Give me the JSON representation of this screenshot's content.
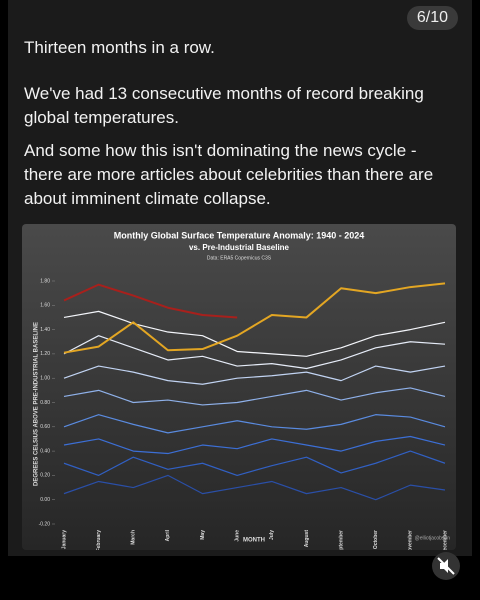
{
  "post": {
    "counter": "6/10",
    "paragraphs": [
      "Thirteen months in a row.",
      "We've had 13 consecutive months of record breaking global temperatures.",
      "And some how this isn't dominating the news cycle - there are more articles about celebrities than there are about imminent climate collapse."
    ]
  },
  "chart_data": {
    "type": "line",
    "title": "Monthly Global Surface Temperature Anomaly: 1940 - 2024",
    "subtitle": "vs. Pre-Industrial Baseline",
    "source": "Data: ERA5 Copernicus C3S",
    "credit": "@elliotjacobson",
    "x_label": "MONTH",
    "y_label": "DEGREES CELSIUS ABOVE PRE-INDUSTRIAL BASELINE",
    "categories": [
      "January",
      "February",
      "March",
      "April",
      "May",
      "June",
      "July",
      "August",
      "September",
      "October",
      "November",
      "December"
    ],
    "ylim": [
      -0.2,
      1.8
    ],
    "yticks": [
      {
        "value": -0.2,
        "label": "-0.20"
      },
      {
        "value": 0,
        "label": "0.00"
      },
      {
        "value": 0.2,
        "label": "0.20"
      },
      {
        "value": 0.4,
        "label": "0.40"
      },
      {
        "value": 0.6,
        "label": "0.60"
      },
      {
        "value": 0.8,
        "label": "0.80"
      },
      {
        "value": 1,
        "label": "1.00"
      },
      {
        "value": 1.2,
        "label": "1.20"
      },
      {
        "value": 1.4,
        "label": "1.40"
      },
      {
        "value": 1.6,
        "label": "1.60"
      },
      {
        "value": 1.8,
        "label": "1.80"
      }
    ],
    "series": [
      {
        "color": "#2a4fa8",
        "values": [
          0.05,
          0.15,
          0.1,
          0.2,
          0.05,
          0.1,
          0.15,
          0.05,
          0.1,
          0.0,
          0.12,
          0.08
        ]
      },
      {
        "color": "#3160c4",
        "values": [
          0.3,
          0.2,
          0.35,
          0.25,
          0.3,
          0.2,
          0.28,
          0.35,
          0.22,
          0.3,
          0.4,
          0.3
        ]
      },
      {
        "color": "#3c6fd6",
        "values": [
          0.45,
          0.5,
          0.4,
          0.38,
          0.45,
          0.42,
          0.5,
          0.45,
          0.4,
          0.48,
          0.52,
          0.45
        ]
      },
      {
        "color": "#5a8be0",
        "values": [
          0.6,
          0.7,
          0.62,
          0.55,
          0.6,
          0.65,
          0.6,
          0.58,
          0.62,
          0.7,
          0.68,
          0.6
        ]
      },
      {
        "color": "#8fb1ea",
        "values": [
          0.85,
          0.9,
          0.8,
          0.82,
          0.78,
          0.8,
          0.85,
          0.9,
          0.82,
          0.88,
          0.92,
          0.85
        ]
      },
      {
        "color": "#c2d4f3",
        "values": [
          1.0,
          1.1,
          1.05,
          0.98,
          0.95,
          1.0,
          1.02,
          1.05,
          0.98,
          1.1,
          1.05,
          1.1
        ]
      },
      {
        "color": "#e6ecf8",
        "values": [
          1.2,
          1.35,
          1.25,
          1.15,
          1.18,
          1.1,
          1.12,
          1.08,
          1.15,
          1.25,
          1.3,
          1.28
        ]
      },
      {
        "color": "#f4f6fb",
        "values": [
          1.5,
          1.55,
          1.45,
          1.38,
          1.35,
          1.22,
          1.2,
          1.18,
          1.25,
          1.35,
          1.4,
          1.46
        ]
      },
      {
        "color": "#e3a623",
        "values": [
          1.21,
          1.26,
          1.46,
          1.23,
          1.24,
          1.35,
          1.52,
          1.5,
          1.74,
          1.7,
          1.75,
          1.78
        ]
      },
      {
        "color": "#a8201c",
        "values": [
          1.64,
          1.77,
          1.68,
          1.58,
          1.52,
          1.5,
          null,
          null,
          null,
          null,
          null,
          null
        ]
      }
    ]
  }
}
